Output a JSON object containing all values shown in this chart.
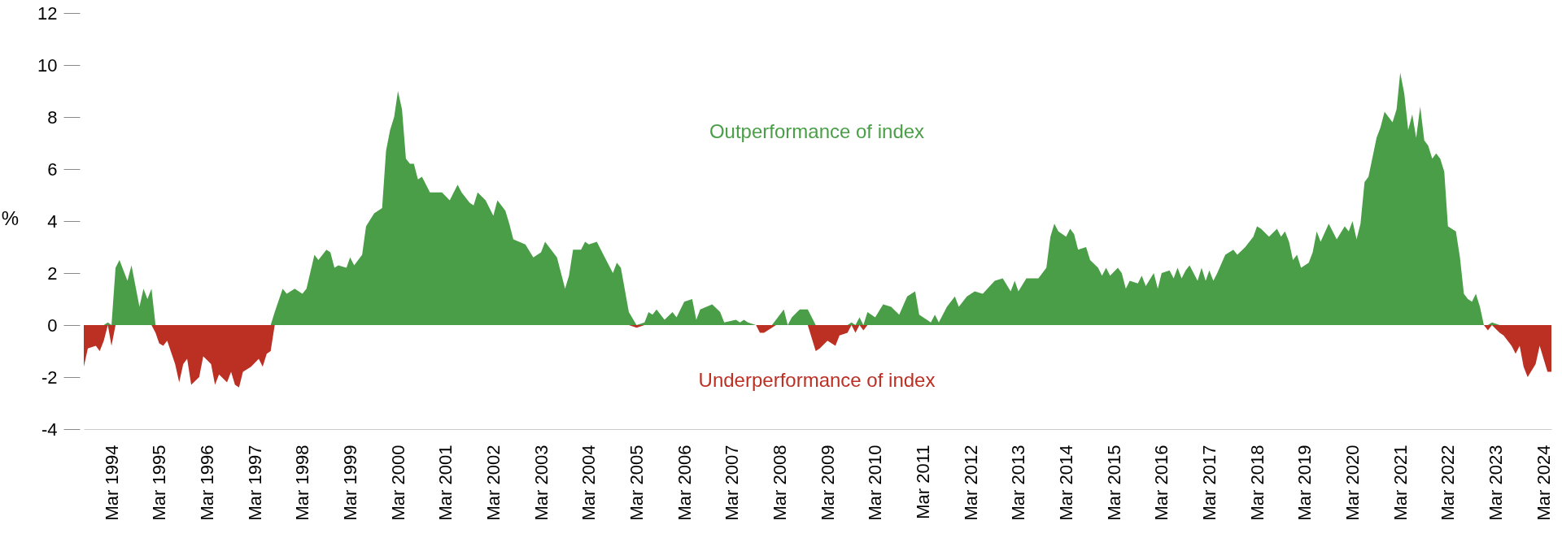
{
  "chart_data": {
    "type": "area",
    "ylabel": "%",
    "x": [
      "1993-08",
      "1993-09",
      "1993-11",
      "1993-12",
      "1994-01",
      "1994-02",
      "1994-03",
      "1994-04",
      "1994-05",
      "1994-07",
      "1994-08",
      "1994-10",
      "1994-11",
      "1994-12",
      "1995-01",
      "1995-02",
      "1995-03",
      "1995-04",
      "1995-05",
      "1995-07",
      "1995-08",
      "1995-09",
      "1995-10",
      "1995-11",
      "1996-01",
      "1996-02",
      "1996-04",
      "1996-05",
      "1996-06",
      "1996-08",
      "1996-09",
      "1996-10",
      "1996-11",
      "1996-12",
      "1997-02",
      "1997-04",
      "1997-05",
      "1997-06",
      "1997-07",
      "1997-08",
      "1997-10",
      "1997-11",
      "1998-01",
      "1998-03",
      "1998-04",
      "1998-06",
      "1998-07",
      "1998-09",
      "1998-10",
      "1998-11",
      "1998-12",
      "1999-02",
      "1999-03",
      "1999-04",
      "1999-06",
      "1999-07",
      "1999-09",
      "1999-11",
      "1999-12",
      "2000-01",
      "2000-02",
      "2000-03",
      "2000-04",
      "2000-05",
      "2000-06",
      "2000-07",
      "2000-08",
      "2000-09",
      "2000-11",
      "2001-02",
      "2001-04",
      "2001-06",
      "2001-07",
      "2001-09",
      "2001-10",
      "2001-11",
      "2002-01",
      "2002-03",
      "2002-04",
      "2002-06",
      "2002-07",
      "2002-08",
      "2002-11",
      "2003-01",
      "2003-03",
      "2003-04",
      "2003-07",
      "2003-09",
      "2003-10",
      "2003-11",
      "2004-01",
      "2004-02",
      "2004-03",
      "2004-05",
      "2004-07",
      "2004-09",
      "2004-10",
      "2004-11",
      "2005-01",
      "2005-03",
      "2005-05",
      "2005-06",
      "2005-07",
      "2005-08",
      "2005-10",
      "2005-12",
      "2006-01",
      "2006-03",
      "2006-05",
      "2006-06",
      "2006-07",
      "2006-10",
      "2006-12",
      "2007-01",
      "2007-04",
      "2007-05",
      "2007-06",
      "2007-07",
      "2007-09",
      "2007-10",
      "2007-11",
      "2008-01",
      "2008-02",
      "2008-04",
      "2008-05",
      "2008-06",
      "2008-08",
      "2008-10",
      "2008-12",
      "2009-01",
      "2009-03",
      "2009-05",
      "2009-06",
      "2009-08",
      "2009-09",
      "2009-10",
      "2009-11",
      "2009-12",
      "2010-01",
      "2010-03",
      "2010-05",
      "2010-07",
      "2010-09",
      "2010-11",
      "2011-01",
      "2011-02",
      "2011-04",
      "2011-05",
      "2011-06",
      "2011-07",
      "2011-09",
      "2011-11",
      "2011-12",
      "2012-02",
      "2012-04",
      "2012-06",
      "2012-09",
      "2012-11",
      "2013-01",
      "2013-02",
      "2013-03",
      "2013-05",
      "2013-08",
      "2013-10",
      "2013-11",
      "2013-12",
      "2014-01",
      "2014-03",
      "2014-04",
      "2014-05",
      "2014-06",
      "2014-08",
      "2014-09",
      "2014-11",
      "2014-12",
      "2015-01",
      "2015-02",
      "2015-04",
      "2015-05",
      "2015-06",
      "2015-07",
      "2015-09",
      "2015-10",
      "2015-11",
      "2016-01",
      "2016-02",
      "2016-03",
      "2016-05",
      "2016-06",
      "2016-07",
      "2016-08",
      "2016-09",
      "2016-10",
      "2016-12",
      "2017-01",
      "2017-02",
      "2017-03",
      "2017-04",
      "2017-05",
      "2017-07",
      "2017-09",
      "2017-10",
      "2017-12",
      "2018-02",
      "2018-03",
      "2018-04",
      "2018-06",
      "2018-08",
      "2018-09",
      "2018-10",
      "2018-11",
      "2018-12",
      "2019-01",
      "2019-02",
      "2019-04",
      "2019-05",
      "2019-06",
      "2019-07",
      "2019-09",
      "2019-11",
      "2020-01",
      "2020-02",
      "2020-03",
      "2020-04",
      "2020-05",
      "2020-06",
      "2020-07",
      "2020-09",
      "2020-10",
      "2020-11",
      "2021-01",
      "2021-02",
      "2021-03",
      "2021-04",
      "2021-05",
      "2021-06",
      "2021-07",
      "2021-08",
      "2021-09",
      "2021-10",
      "2021-11",
      "2021-12",
      "2022-01",
      "2022-02",
      "2022-03",
      "2022-05",
      "2022-06",
      "2022-07",
      "2022-08",
      "2022-09",
      "2022-10",
      "2022-11",
      "2022-12",
      "2023-01",
      "2023-02",
      "2023-04",
      "2023-05",
      "2023-06",
      "2023-07",
      "2023-08",
      "2023-09",
      "2023-10",
      "2023-11",
      "2024-01",
      "2024-02",
      "2024-04",
      "2024-05"
    ],
    "series": [
      {
        "name": "Outperformance of index",
        "color": "#4a9e47",
        "values": [
          0,
          0,
          0,
          0,
          0,
          0.1,
          0,
          2.2,
          2.5,
          1.7,
          2.3,
          0.7,
          1.4,
          1.0,
          1.4,
          0,
          0,
          0,
          0,
          0,
          0,
          0,
          0,
          0,
          0,
          0,
          0,
          0,
          0,
          0,
          0,
          0,
          0,
          0,
          0,
          0,
          0,
          0,
          0,
          0.5,
          1.4,
          1.2,
          1.4,
          1.2,
          1.4,
          2.7,
          2.5,
          2.9,
          2.8,
          2.2,
          2.3,
          2.2,
          2.6,
          2.3,
          2.7,
          3.8,
          4.3,
          4.5,
          6.7,
          7.5,
          8.0,
          9.0,
          8.3,
          6.4,
          6.2,
          6.2,
          5.6,
          5.7,
          5.1,
          5.1,
          4.8,
          5.4,
          5.1,
          4.7,
          4.6,
          5.1,
          4.8,
          4.2,
          4.8,
          4.4,
          3.9,
          3.3,
          3.1,
          2.6,
          2.8,
          3.2,
          2.6,
          1.4,
          1.9,
          2.9,
          2.9,
          3.2,
          3.1,
          3.2,
          2.6,
          2.0,
          2.4,
          2.2,
          0.5,
          0,
          0.1,
          0.5,
          0.4,
          0.6,
          0.2,
          0.5,
          0.3,
          0.9,
          1.0,
          0.2,
          0.6,
          0.8,
          0.5,
          0.1,
          0.2,
          0.1,
          0.2,
          0.1,
          0,
          0,
          0,
          0,
          0.2,
          0.6,
          0,
          0.3,
          0.6,
          0.6,
          0,
          0,
          0,
          0,
          0,
          0,
          0.1,
          0,
          0.3,
          0,
          0.5,
          0.3,
          0.8,
          0.7,
          0.4,
          1.1,
          1.3,
          0.4,
          0.2,
          0.1,
          0.4,
          0.1,
          0.7,
          1.1,
          0.7,
          1.1,
          1.3,
          1.2,
          1.7,
          1.8,
          1.3,
          1.7,
          1.3,
          1.8,
          1.8,
          2.2,
          3.4,
          3.9,
          3.6,
          3.4,
          3.7,
          3.5,
          2.9,
          3.0,
          2.5,
          2.2,
          1.9,
          2.2,
          1.9,
          2.2,
          2.0,
          1.4,
          1.7,
          1.6,
          1.9,
          1.5,
          2.0,
          1.4,
          2.0,
          2.1,
          1.8,
          2.2,
          1.8,
          2.1,
          2.3,
          1.7,
          2.2,
          1.7,
          2.1,
          1.7,
          2.0,
          2.7,
          2.9,
          2.7,
          3.0,
          3.4,
          3.8,
          3.7,
          3.4,
          3.7,
          3.4,
          3.6,
          3.2,
          2.5,
          2.7,
          2.2,
          2.4,
          2.8,
          3.6,
          3.2,
          3.9,
          3.3,
          3.8,
          3.6,
          4.0,
          3.3,
          3.9,
          5.5,
          5.7,
          7.2,
          7.6,
          8.2,
          7.8,
          8.3,
          9.7,
          8.9,
          7.5,
          8.1,
          7.2,
          8.4,
          7.1,
          6.9,
          6.4,
          6.6,
          6.4,
          5.9,
          3.8,
          3.6,
          2.6,
          1.2,
          1.0,
          0.9,
          1.2,
          0.7,
          0,
          0,
          0.1,
          0,
          0,
          0,
          0,
          0,
          0,
          0,
          0,
          0,
          0,
          0,
          0
        ]
      },
      {
        "name": "Underperformance of index",
        "color": "#bc3024",
        "values": [
          -1.6,
          -0.9,
          -0.8,
          -1.0,
          -0.6,
          0,
          -0.8,
          0,
          0,
          0,
          0,
          0,
          0,
          0,
          0,
          -0.3,
          -0.7,
          -0.8,
          -0.6,
          -1.5,
          -2.2,
          -1.5,
          -1.3,
          -2.3,
          -2.0,
          -1.2,
          -1.5,
          -2.3,
          -1.9,
          -2.2,
          -1.8,
          -2.3,
          -2.4,
          -1.8,
          -1.6,
          -1.3,
          -1.6,
          -1.1,
          -1.0,
          0,
          0,
          0,
          0,
          0,
          0,
          0,
          0,
          0,
          0,
          0,
          0,
          0,
          0,
          0,
          0,
          0,
          0,
          0,
          0,
          0,
          0,
          0,
          0,
          0,
          0,
          0,
          0,
          0,
          0,
          0,
          0,
          0,
          0,
          0,
          0,
          0,
          0,
          0,
          0,
          0,
          0,
          0,
          0,
          0,
          0,
          0,
          0,
          0,
          0,
          0,
          0,
          0,
          0,
          0,
          0,
          0,
          0,
          0,
          0,
          -0.1,
          0,
          0,
          0,
          0,
          0,
          0,
          0,
          0,
          0,
          0,
          0,
          0,
          0,
          0,
          0,
          0,
          0,
          0,
          0,
          -0.3,
          -0.3,
          -0.1,
          0,
          0,
          0,
          0,
          0,
          0,
          -1.0,
          -0.9,
          -0.6,
          -0.8,
          -0.4,
          -0.3,
          0,
          -0.3,
          0,
          -0.2,
          0,
          0,
          0,
          0,
          0,
          0,
          0,
          0,
          0,
          0,
          0,
          0,
          0,
          0,
          0,
          0,
          0,
          0,
          0,
          0,
          0,
          0,
          0,
          0,
          0,
          0,
          0,
          0,
          0,
          0,
          0,
          0,
          0,
          0,
          0,
          0,
          0,
          0,
          0,
          0,
          0,
          0,
          0,
          0,
          0,
          0,
          0,
          0,
          0,
          0,
          0,
          0,
          0,
          0,
          0,
          0,
          0,
          0,
          0,
          0,
          0,
          0,
          0,
          0,
          0,
          0,
          0,
          0,
          0,
          0,
          0,
          0,
          0,
          0,
          0,
          0,
          0,
          0,
          0,
          0,
          0,
          0,
          0,
          0,
          0,
          0,
          0,
          0,
          0,
          0,
          0,
          0,
          0,
          0,
          0,
          0,
          0,
          0,
          0,
          0,
          0,
          0,
          0,
          0,
          0,
          0,
          0,
          0,
          0,
          0,
          0,
          0,
          0,
          0,
          0,
          -0.2,
          0,
          -0.3,
          -0.4,
          -0.6,
          -0.8,
          -1.1,
          -0.8,
          -1.6,
          -2.0,
          -1.5,
          -0.8,
          -1.8,
          -1.8
        ]
      }
    ],
    "xticks": [
      {
        "value": "1994-03",
        "label": "Mar 1994"
      },
      {
        "value": "1995-03",
        "label": "Mar 1995"
      },
      {
        "value": "1996-03",
        "label": "Mar 1996"
      },
      {
        "value": "1997-03",
        "label": "Mar 1997"
      },
      {
        "value": "1998-03",
        "label": "Mar 1998"
      },
      {
        "value": "1999-03",
        "label": "Mar 1999"
      },
      {
        "value": "2000-03",
        "label": "Mar 2000"
      },
      {
        "value": "2001-03",
        "label": "Mar 2001"
      },
      {
        "value": "2002-03",
        "label": "Mar 2002"
      },
      {
        "value": "2003-03",
        "label": "Mar 2003"
      },
      {
        "value": "2004-03",
        "label": "Mar 2004"
      },
      {
        "value": "2005-03",
        "label": "Mar 2005"
      },
      {
        "value": "2006-03",
        "label": "Mar 2006"
      },
      {
        "value": "2007-03",
        "label": "Mar 2007"
      },
      {
        "value": "2008-03",
        "label": "Mar 2008"
      },
      {
        "value": "2009-03",
        "label": "Mar 2009"
      },
      {
        "value": "2010-03",
        "label": "Mar 2010"
      },
      {
        "value": "2011-03",
        "label": "Mar 2011"
      },
      {
        "value": "2012-03",
        "label": "Mar 2012"
      },
      {
        "value": "2013-03",
        "label": "Mar 2013"
      },
      {
        "value": "2014-03",
        "label": "Mar 2014"
      },
      {
        "value": "2015-03",
        "label": "Mar 2015"
      },
      {
        "value": "2016-03",
        "label": "Mar 2016"
      },
      {
        "value": "2017-03",
        "label": "Mar 2017"
      },
      {
        "value": "2018-03",
        "label": "Mar 2018"
      },
      {
        "value": "2019-03",
        "label": "Mar 2019"
      },
      {
        "value": "2020-03",
        "label": "Mar 2020"
      },
      {
        "value": "2021-03",
        "label": "Mar 2021"
      },
      {
        "value": "2022-03",
        "label": "Mar 2022"
      },
      {
        "value": "2023-03",
        "label": "Mar 2023"
      },
      {
        "value": "2024-03",
        "label": "Mar 2024"
      }
    ],
    "xlim": [
      "1993-08",
      "2024-05"
    ],
    "ylim": [
      -4,
      12
    ],
    "yticks": [
      -4,
      -2,
      0,
      2,
      4,
      6,
      8,
      10,
      12
    ]
  }
}
